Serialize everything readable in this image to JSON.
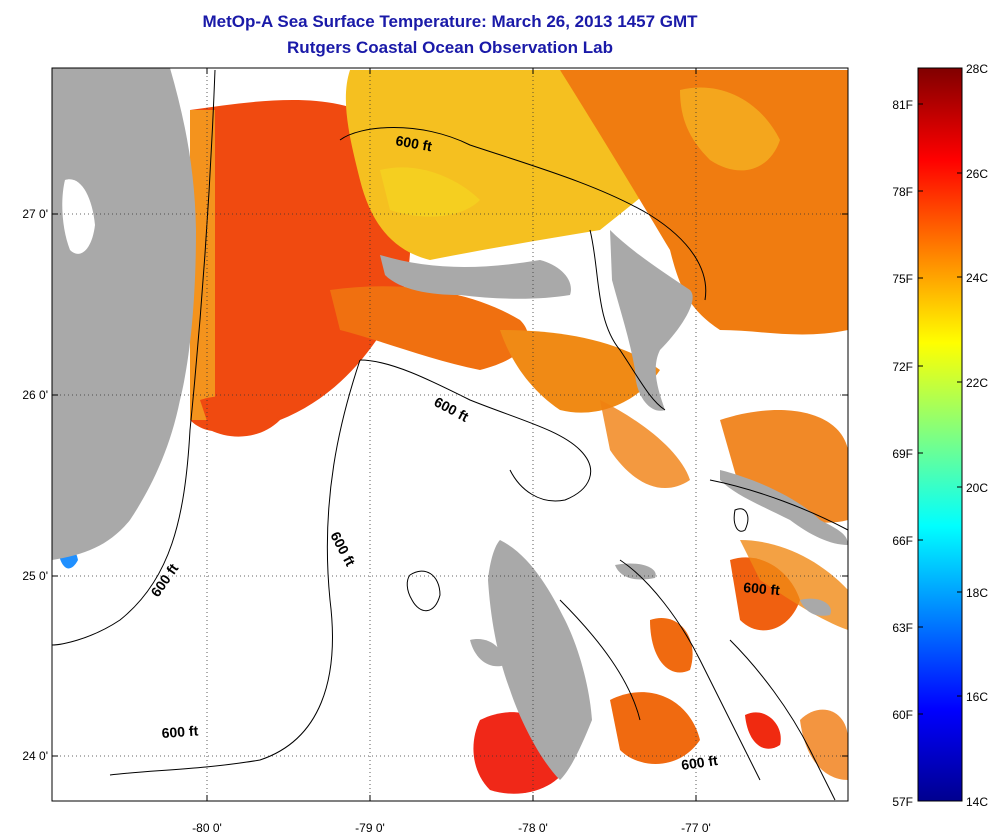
{
  "header": {
    "title": "MetOp-A Sea Surface Temperature:  March 26, 2013 1457 GMT",
    "subtitle": "Rutgers Coastal Ocean Observation Lab"
  },
  "map": {
    "lat_labels": [
      "27 0'",
      "26 0'",
      "25 0'",
      "24 0'"
    ],
    "lon_labels": [
      "-80 0'",
      "-79 0'",
      "-78 0'",
      "-77 0'"
    ],
    "isobath_label": "600 ft",
    "colors": {
      "land": "#a9a9a9",
      "cloud": "#ffffff"
    }
  },
  "colorbar": {
    "celsius_labels": [
      "28C",
      "26C",
      "24C",
      "22C",
      "20C",
      "18C",
      "16C",
      "14C"
    ],
    "fahrenheit_labels": [
      "81F",
      "78F",
      "75F",
      "72F",
      "69F",
      "66F",
      "63F",
      "60F",
      "57F"
    ],
    "range_celsius": [
      14,
      28
    ],
    "colors": [
      "#00008f",
      "#0000ff",
      "#0080ff",
      "#00ffff",
      "#80ff80",
      "#ffff00",
      "#ff8000",
      "#ff0000",
      "#800000"
    ]
  }
}
